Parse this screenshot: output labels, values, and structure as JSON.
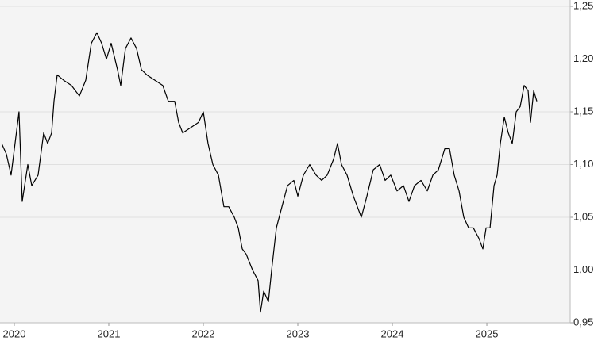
{
  "chart_data": {
    "type": "line",
    "x": [
      2019.866,
      2019.916,
      2019.966,
      2020.05,
      2020.084,
      2020.143,
      2020.185,
      2020.252,
      2020.311,
      2020.353,
      2020.395,
      2020.42,
      2020.454,
      2020.521,
      2020.605,
      2020.689,
      2020.756,
      2020.815,
      2020.874,
      2020.924,
      2020.975,
      2021.025,
      2021.092,
      2021.126,
      2021.176,
      2021.235,
      2021.294,
      2021.345,
      2021.403,
      2021.487,
      2021.571,
      2021.63,
      2021.697,
      2021.739,
      2021.782,
      2021.866,
      2021.95,
      2022.0,
      2022.05,
      2022.101,
      2022.16,
      2022.218,
      2022.269,
      2022.328,
      2022.37,
      2022.412,
      2022.454,
      2022.521,
      2022.58,
      2022.605,
      2022.639,
      2022.689,
      2022.723,
      2022.773,
      2022.832,
      2022.891,
      2022.958,
      2023.0,
      2023.059,
      2023.126,
      2023.193,
      2023.252,
      2023.311,
      2023.378,
      2023.42,
      2023.462,
      2023.521,
      2023.588,
      2023.63,
      2023.672,
      2023.731,
      2023.798,
      2023.866,
      2023.924,
      2023.983,
      2024.05,
      2024.118,
      2024.176,
      2024.235,
      2024.303,
      2024.37,
      2024.429,
      2024.487,
      2024.555,
      2024.605,
      2024.655,
      2024.706,
      2024.756,
      2024.807,
      2024.857,
      2024.916,
      2024.958,
      2024.992,
      2025.034,
      2025.076,
      2025.109,
      2025.143,
      2025.185,
      2025.227,
      2025.269,
      2025.311,
      2025.353,
      2025.395,
      2025.437,
      2025.462,
      2025.496,
      2025.529
    ],
    "series": [
      {
        "color": "#000000",
        "values": [
          1.12,
          1.11,
          1.09,
          1.15,
          1.065,
          1.1,
          1.08,
          1.09,
          1.13,
          1.12,
          1.13,
          1.16,
          1.185,
          1.18,
          1.175,
          1.165,
          1.18,
          1.215,
          1.225,
          1.215,
          1.2,
          1.215,
          1.19,
          1.175,
          1.21,
          1.22,
          1.21,
          1.19,
          1.185,
          1.18,
          1.175,
          1.16,
          1.16,
          1.14,
          1.13,
          1.135,
          1.14,
          1.15,
          1.12,
          1.1,
          1.09,
          1.06,
          1.06,
          1.05,
          1.04,
          1.02,
          1.015,
          1.0,
          0.99,
          0.96,
          0.98,
          0.97,
          1.0,
          1.04,
          1.06,
          1.08,
          1.085,
          1.07,
          1.09,
          1.1,
          1.09,
          1.085,
          1.09,
          1.105,
          1.12,
          1.1,
          1.09,
          1.07,
          1.06,
          1.05,
          1.07,
          1.095,
          1.1,
          1.085,
          1.09,
          1.075,
          1.08,
          1.065,
          1.08,
          1.085,
          1.075,
          1.09,
          1.095,
          1.115,
          1.115,
          1.09,
          1.075,
          1.05,
          1.04,
          1.04,
          1.03,
          1.02,
          1.04,
          1.04,
          1.08,
          1.09,
          1.12,
          1.145,
          1.13,
          1.12,
          1.15,
          1.155,
          1.175,
          1.17,
          1.14,
          1.17,
          1.16
        ]
      }
    ],
    "xlim": [
      2019.849,
      2025.882
    ],
    "xticks": [
      2020,
      2021,
      2022,
      2023,
      2024,
      2025
    ],
    "ylim": [
      0.95,
      1.25
    ],
    "yticks": [
      {
        "value": 0.95,
        "label": "0,95"
      },
      {
        "value": 1.0,
        "label": "1,00"
      },
      {
        "value": 1.05,
        "label": "1,05"
      },
      {
        "value": 1.1,
        "label": "1,10"
      },
      {
        "value": 1.15,
        "label": "1,15"
      },
      {
        "value": 1.2,
        "label": "1,20"
      },
      {
        "value": 1.25,
        "label": "1,25"
      }
    ],
    "grid": true
  }
}
